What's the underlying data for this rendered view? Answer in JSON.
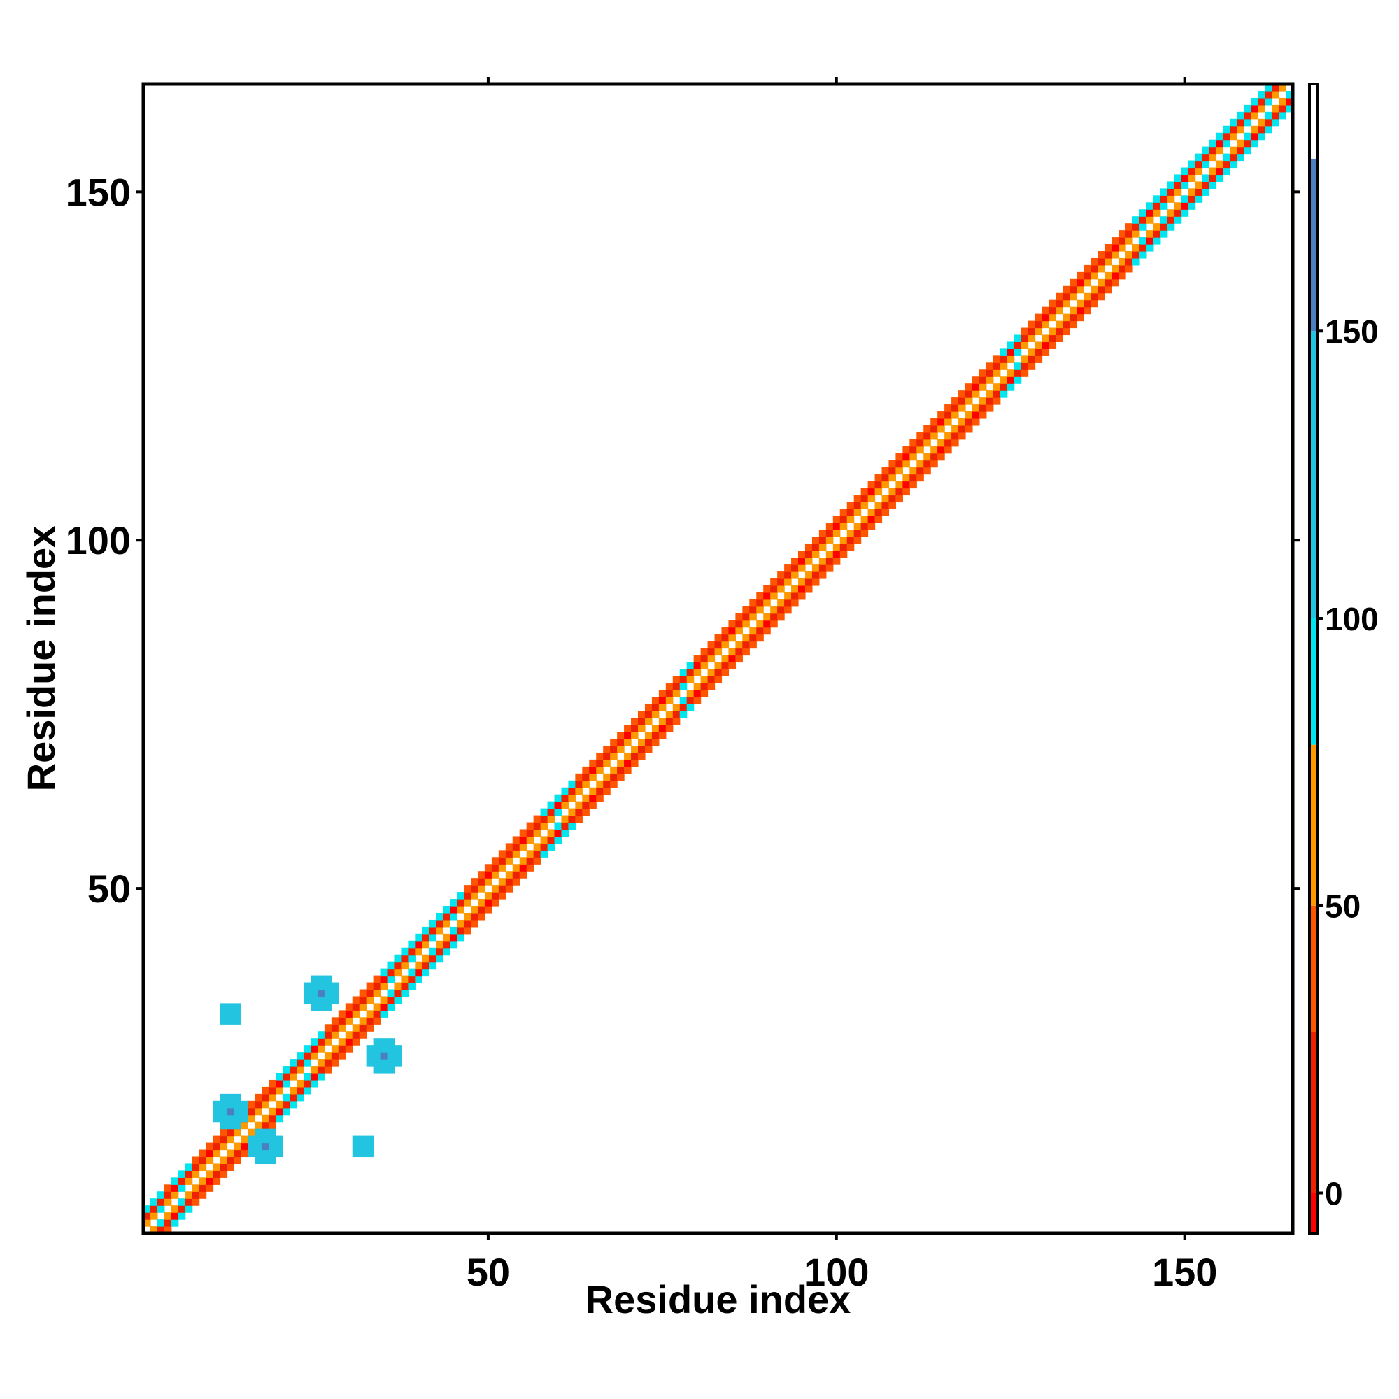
{
  "chart_data": {
    "type": "heatmap",
    "title": "",
    "xlabel": "Residue index",
    "ylabel": "Residue index",
    "xlim": [
      1,
      165
    ],
    "ylim": [
      1,
      165
    ],
    "x_ticks": [
      50,
      100,
      150
    ],
    "y_ticks": [
      50,
      100,
      150
    ],
    "colorbar": {
      "ticks": [
        0,
        50,
        100,
        150
      ],
      "range": [
        -7,
        193
      ],
      "bands": [
        {
          "from": -7,
          "to": 0,
          "color": "#ff0000"
        },
        {
          "from": 0,
          "to": 28,
          "color": "#ee2200"
        },
        {
          "from": 28,
          "to": 50,
          "color": "#ff5500"
        },
        {
          "from": 50,
          "to": 78,
          "color": "#ff9900"
        },
        {
          "from": 78,
          "to": 100,
          "color": "#00e5ee"
        },
        {
          "from": 100,
          "to": 150,
          "color": "#22c4e0"
        },
        {
          "from": 150,
          "to": 180,
          "color": "#4a7fc0"
        },
        {
          "from": 180,
          "to": 193,
          "color": "#ffffff"
        }
      ]
    },
    "diagonal_band": {
      "offsets": [
        -3,
        -2,
        -1,
        1,
        2,
        3
      ],
      "offset_values": {
        "1": 60,
        "2": 10,
        "3": 40
      },
      "cyan_segments": [
        [
          1,
          3
        ],
        [
          5,
          7
        ],
        [
          20,
          26
        ],
        [
          35,
          46
        ],
        [
          58,
          62
        ],
        [
          78,
          79
        ],
        [
          124,
          126
        ],
        [
          143,
          165
        ]
      ]
    },
    "off_diagonal_clusters": [
      {
        "cx": 13,
        "cy": 18,
        "value": 140
      },
      {
        "cx": 18,
        "cy": 13,
        "value": 140
      },
      {
        "cx": 26,
        "cy": 35,
        "value": 145
      },
      {
        "cx": 35,
        "cy": 26,
        "value": 145
      },
      {
        "cx": 13,
        "cy": 32,
        "value": 110
      },
      {
        "cx": 32,
        "cy": 13,
        "value": 110
      }
    ]
  }
}
